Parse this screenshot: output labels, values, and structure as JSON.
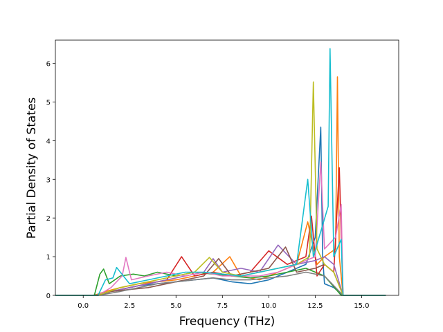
{
  "chart_data": {
    "type": "line",
    "title": "",
    "xlabel": "Frequency (THz)",
    "ylabel": "Partial Density of States",
    "xlim": [
      -1.5,
      17.0
    ],
    "ylim": [
      0,
      6.6
    ],
    "xticks": [
      0.0,
      2.5,
      5.0,
      7.5,
      10.0,
      12.5,
      15.0
    ],
    "xtick_labels": [
      "0.0",
      "2.5",
      "5.0",
      "7.5",
      "10.0",
      "12.5",
      "15.0"
    ],
    "yticks": [
      0,
      1,
      2,
      3,
      4,
      5,
      6
    ],
    "ytick_labels": [
      "0",
      "1",
      "2",
      "3",
      "4",
      "5",
      "6"
    ],
    "grid": false,
    "legend": "none",
    "palette": [
      "#1f77b4",
      "#ff7f0e",
      "#2ca02c",
      "#d62728",
      "#9467bd",
      "#8c564b",
      "#e377c2",
      "#7f7f7f",
      "#bcbd22",
      "#17becf"
    ],
    "series": [
      {
        "x": [
          -1.5,
          0.5,
          1.0,
          1.5,
          2.0,
          2.5,
          3.0,
          4.0,
          5.0,
          6.0,
          7.0,
          8.0,
          9.0,
          10.0,
          11.0,
          12.0,
          12.5,
          12.8,
          12.9,
          13.0,
          13.5,
          14.0,
          16.3
        ],
        "y": [
          0,
          0,
          0.05,
          0.1,
          0.15,
          0.2,
          0.25,
          0.3,
          0.35,
          0.4,
          0.45,
          0.35,
          0.3,
          0.4,
          0.6,
          0.8,
          1.5,
          4.35,
          1.0,
          0.3,
          0.2,
          0,
          0
        ]
      },
      {
        "x": [
          -1.5,
          0.6,
          1.2,
          2.0,
          3.0,
          4.0,
          5.0,
          6.0,
          7.0,
          7.9,
          8.5,
          9.5,
          10.5,
          11.5,
          12.1,
          12.6,
          13.0,
          13.6,
          13.7,
          13.8,
          14.0,
          16.3
        ],
        "y": [
          0,
          0,
          0.1,
          0.2,
          0.3,
          0.35,
          0.4,
          0.5,
          0.6,
          1.0,
          0.5,
          0.4,
          0.6,
          0.8,
          1.9,
          0.8,
          1.0,
          1.2,
          5.65,
          1.0,
          0,
          0
        ]
      },
      {
        "x": [
          -1.5,
          0.6,
          0.9,
          1.1,
          1.4,
          2.0,
          2.7,
          3.3,
          4.0,
          5.0,
          6.0,
          7.0,
          8.0,
          9.0,
          10.0,
          11.0,
          12.0,
          13.0,
          13.9,
          16.3
        ],
        "y": [
          0,
          0,
          0.55,
          0.68,
          0.3,
          0.5,
          0.55,
          0.5,
          0.6,
          0.5,
          0.6,
          0.55,
          0.5,
          0.45,
          0.5,
          0.6,
          0.7,
          0.5,
          0,
          0
        ]
      },
      {
        "x": [
          -1.5,
          0.7,
          1.5,
          2.5,
          3.5,
          4.5,
          5.3,
          6.0,
          7.0,
          8.0,
          9.0,
          10.0,
          11.0,
          12.0,
          12.3,
          12.6,
          13.0,
          13.5,
          13.8,
          14.0,
          16.3
        ],
        "y": [
          0,
          0,
          0.1,
          0.2,
          0.3,
          0.4,
          1.0,
          0.5,
          0.6,
          0.5,
          0.6,
          1.15,
          0.8,
          1.0,
          2.05,
          0.5,
          0.8,
          0.6,
          3.3,
          0,
          0
        ]
      },
      {
        "x": [
          -1.5,
          0.7,
          1.5,
          2.5,
          3.5,
          4.5,
          5.5,
          6.5,
          7.0,
          7.5,
          8.5,
          9.5,
          10.5,
          11.5,
          12.5,
          13.0,
          13.5,
          14.0,
          16.3
        ],
        "y": [
          0,
          0,
          0.1,
          0.2,
          0.3,
          0.4,
          0.5,
          0.6,
          0.95,
          0.6,
          0.7,
          0.6,
          1.3,
          0.8,
          0.9,
          1.0,
          0.8,
          0,
          0
        ]
      },
      {
        "x": [
          -1.5,
          0.8,
          1.5,
          2.5,
          3.5,
          4.5,
          5.5,
          6.5,
          7.3,
          8.0,
          9.0,
          10.0,
          10.9,
          11.5,
          12.5,
          13.0,
          13.5,
          14.0,
          16.3
        ],
        "y": [
          0,
          0,
          0.1,
          0.15,
          0.2,
          0.3,
          0.4,
          0.5,
          0.95,
          0.5,
          0.6,
          0.7,
          1.25,
          0.6,
          0.7,
          0.8,
          0.6,
          0,
          0
        ]
      },
      {
        "x": [
          -1.5,
          0.8,
          1.5,
          2.1,
          2.3,
          2.6,
          3.5,
          4.5,
          5.5,
          6.5,
          7.5,
          8.5,
          9.5,
          10.5,
          11.5,
          12.5,
          12.8,
          13.0,
          13.6,
          13.9,
          14.0,
          16.3
        ],
        "y": [
          0,
          0,
          0.2,
          0.5,
          0.98,
          0.4,
          0.5,
          0.6,
          0.5,
          0.6,
          0.5,
          0.5,
          0.5,
          0.6,
          0.8,
          1.0,
          3.45,
          1.2,
          1.5,
          2.35,
          0,
          0
        ]
      },
      {
        "x": [
          -1.5,
          0.8,
          2.0,
          3.0,
          4.0,
          5.0,
          6.0,
          7.0,
          8.0,
          9.0,
          10.0,
          11.0,
          12.0,
          13.0,
          14.0,
          16.3
        ],
        "y": [
          0,
          0,
          0.1,
          0.2,
          0.3,
          0.35,
          0.4,
          0.45,
          0.4,
          0.4,
          0.45,
          0.5,
          0.6,
          0.5,
          0,
          0
        ]
      },
      {
        "x": [
          -1.5,
          0.8,
          2.0,
          3.0,
          4.0,
          5.0,
          6.0,
          6.8,
          7.5,
          8.5,
          9.5,
          10.5,
          11.5,
          12.2,
          12.4,
          12.6,
          13.0,
          13.5,
          14.0,
          16.3
        ],
        "y": [
          0,
          0,
          0.2,
          0.3,
          0.4,
          0.5,
          0.6,
          0.98,
          0.6,
          0.5,
          0.6,
          0.7,
          0.8,
          1.0,
          5.52,
          1.2,
          0.8,
          0.6,
          0,
          0
        ]
      },
      {
        "x": [
          -1.5,
          0.8,
          1.2,
          1.6,
          1.8,
          2.5,
          3.5,
          4.5,
          5.5,
          6.5,
          7.5,
          8.5,
          9.5,
          10.5,
          11.5,
          12.1,
          12.4,
          13.2,
          13.3,
          13.5,
          13.9,
          14.0,
          16.3
        ],
        "y": [
          0,
          0,
          0.4,
          0.45,
          0.72,
          0.3,
          0.4,
          0.5,
          0.6,
          0.6,
          0.55,
          0.5,
          0.6,
          0.7,
          0.8,
          3.0,
          1.0,
          2.3,
          6.38,
          1.0,
          1.45,
          0,
          0
        ]
      }
    ]
  }
}
